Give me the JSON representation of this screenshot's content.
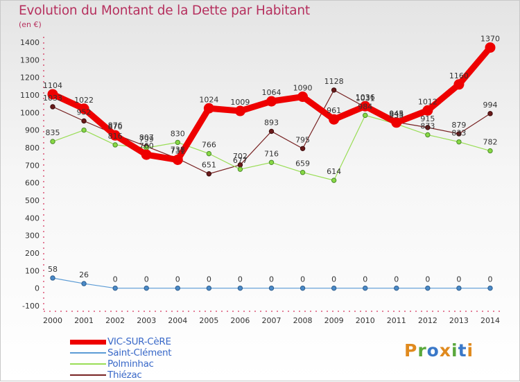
{
  "title": "Evolution du Montant de la Dette par Habitant",
  "unit_label": "(en €)",
  "logo": {
    "text": "Proxiti",
    "letter_colors": [
      "#e08a1e",
      "#5aa83c",
      "#3a78c8",
      "#e08a1e",
      "#5aa83c",
      "#3a78c8",
      "#e08a1e"
    ]
  },
  "chart_data": {
    "type": "line",
    "x": [
      "2000",
      "2001",
      "2002",
      "2003",
      "2004",
      "2005",
      "2006",
      "2007",
      "2008",
      "2009",
      "2010",
      "2011",
      "2012",
      "2013",
      "2014"
    ],
    "y_ticks": [
      "-100",
      "0",
      "100",
      "200",
      "300",
      "400",
      "500",
      "600",
      "700",
      "800",
      "900",
      "1000",
      "1100",
      "1200",
      "1300",
      "1400"
    ],
    "ylim": [
      -100,
      1400
    ],
    "grid": false,
    "legend_position": "bottom-left",
    "series": [
      {
        "name": "VIC-SUR-CèRE",
        "color": "#ee0000",
        "values": [
          1104,
          1022,
          870,
          760,
          731,
          1024,
          1009,
          1064,
          1090,
          961,
          1036,
          943,
          1012,
          1160,
          1370
        ],
        "labels": [
          "1104",
          "1022",
          "870",
          "760",
          "731",
          "1024",
          "1009",
          "1064",
          "1090",
          "961",
          "1036",
          "943",
          "1012",
          "1160",
          "1370"
        ]
      },
      {
        "name": "Saint-Clément",
        "color": "#5b9bd5",
        "values": [
          58,
          26,
          0,
          0,
          0,
          0,
          0,
          0,
          0,
          0,
          0,
          0,
          0,
          0,
          0
        ],
        "labels": [
          "58",
          "26",
          "0",
          "0",
          "0",
          "0",
          "0",
          "0",
          "0",
          "0",
          "0",
          "0",
          "0",
          "0",
          "0"
        ]
      },
      {
        "name": "Polminhac",
        "color": "#99dd55",
        "values": [
          835,
          900,
          816,
          799,
          830,
          766,
          677,
          716,
          659,
          614,
          984,
          935,
          873,
          833,
          782
        ],
        "labels": [
          "835",
          "",
          "816",
          "799",
          "830",
          "766",
          "677",
          "716",
          "659",
          "614",
          "984",
          "935",
          "873",
          "833",
          "782"
        ]
      },
      {
        "name": "Thiézac",
        "color": "#772222",
        "values": [
          1033,
          952,
          876,
          807,
          738,
          651,
          702,
          893,
          795,
          1128,
          1031,
          945,
          915,
          879,
          994
        ],
        "labels": [
          "1033",
          "952",
          "876",
          "807",
          "738",
          "651",
          "702",
          "893",
          "795",
          "1128",
          "1031",
          "945",
          "915",
          "879",
          "994"
        ]
      }
    ]
  }
}
